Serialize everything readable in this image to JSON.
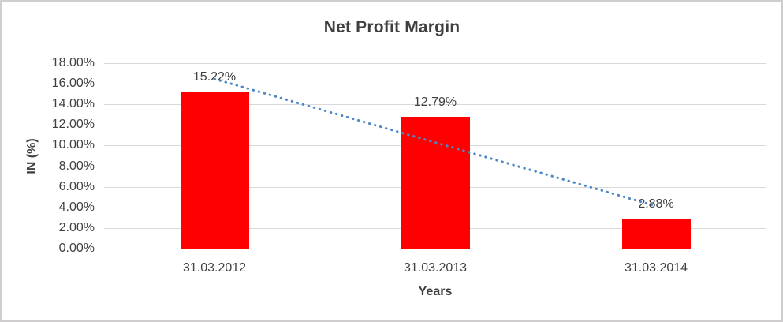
{
  "chart_data": {
    "type": "bar",
    "title": "Net Profit Margin",
    "xlabel": "Years",
    "ylabel": "IN (%)",
    "categories": [
      "31.03.2012",
      "31.03.2013",
      "31.03.2014"
    ],
    "values": [
      15.22,
      12.79,
      2.88
    ],
    "data_labels": [
      "15.22%",
      "12.79%",
      "2.88%"
    ],
    "ylim": [
      0,
      18
    ],
    "y_tick_step": 2,
    "y_tick_labels": [
      "0.00%",
      "2.00%",
      "4.00%",
      "6.00%",
      "8.00%",
      "10.00%",
      "12.00%",
      "14.00%",
      "16.00%",
      "18.00%"
    ],
    "grid": true,
    "legend": false,
    "series_name": "Net Profit Margin",
    "trendline": {
      "type": "linear",
      "style": "dotted"
    },
    "colors": {
      "bar": "#ff0000",
      "trendline": "#4e87c8",
      "gridline": "#d9d9d9",
      "text": "#404040",
      "title_text": "#3f3f3f",
      "frame_border": "#cfcdcd"
    }
  }
}
